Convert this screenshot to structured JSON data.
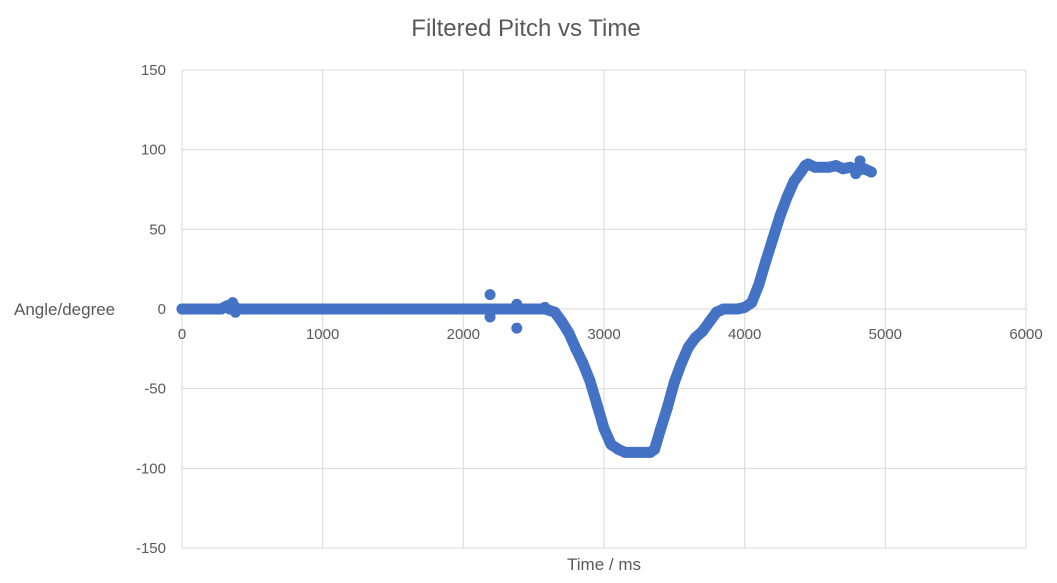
{
  "chart_data": {
    "type": "scatter",
    "title": "Filtered Pitch vs Time",
    "xlabel": "Time / ms",
    "ylabel": "Angle/degree",
    "xlim": [
      0,
      6000
    ],
    "ylim": [
      -150,
      150
    ],
    "xticks": [
      0,
      1000,
      2000,
      3000,
      4000,
      5000,
      6000
    ],
    "yticks": [
      -150,
      -100,
      -50,
      0,
      50,
      100,
      150
    ],
    "grid": true,
    "legend": "none",
    "color": "#4472c4",
    "series": [
      {
        "name": "",
        "points": [
          [
            0,
            0
          ],
          [
            200,
            0
          ],
          [
            280,
            0
          ],
          [
            300,
            1
          ],
          [
            320,
            2
          ],
          [
            340,
            0
          ],
          [
            360,
            2
          ],
          [
            380,
            1
          ],
          [
            400,
            0
          ],
          [
            600,
            0
          ],
          [
            1000,
            0
          ],
          [
            1500,
            0
          ],
          [
            2000,
            0
          ],
          [
            2150,
            0
          ],
          [
            2200,
            0
          ],
          [
            2300,
            0
          ],
          [
            2390,
            0
          ],
          [
            2500,
            0
          ],
          [
            2580,
            0
          ],
          [
            2650,
            -2
          ],
          [
            2700,
            -8
          ],
          [
            2750,
            -15
          ],
          [
            2800,
            -25
          ],
          [
            2850,
            -34
          ],
          [
            2900,
            -45
          ],
          [
            2950,
            -60
          ],
          [
            3000,
            -75
          ],
          [
            3050,
            -85
          ],
          [
            3100,
            -88
          ],
          [
            3150,
            -90
          ],
          [
            3250,
            -90
          ],
          [
            3330,
            -90
          ],
          [
            3360,
            -88
          ],
          [
            3400,
            -76
          ],
          [
            3450,
            -62
          ],
          [
            3500,
            -46
          ],
          [
            3550,
            -34
          ],
          [
            3600,
            -24
          ],
          [
            3650,
            -18
          ],
          [
            3700,
            -14
          ],
          [
            3750,
            -8
          ],
          [
            3800,
            -2
          ],
          [
            3850,
            0
          ],
          [
            3950,
            0
          ],
          [
            4000,
            1
          ],
          [
            4050,
            4
          ],
          [
            4100,
            15
          ],
          [
            4150,
            30
          ],
          [
            4200,
            44
          ],
          [
            4250,
            58
          ],
          [
            4300,
            70
          ],
          [
            4350,
            80
          ],
          [
            4400,
            86
          ],
          [
            4430,
            90
          ],
          [
            4450,
            91
          ],
          [
            4500,
            89
          ],
          [
            4600,
            89
          ],
          [
            4650,
            90
          ],
          [
            4700,
            88
          ],
          [
            4750,
            89
          ],
          [
            4800,
            87
          ],
          [
            4850,
            88
          ],
          [
            4900,
            86
          ]
        ],
        "outliers": [
          [
            360,
            4
          ],
          [
            380,
            -2
          ],
          [
            2190,
            9
          ],
          [
            2190,
            -5
          ],
          [
            2380,
            3
          ],
          [
            2380,
            -12
          ],
          [
            2580,
            1
          ],
          [
            4790,
            85
          ],
          [
            4820,
            93
          ]
        ]
      }
    ]
  }
}
